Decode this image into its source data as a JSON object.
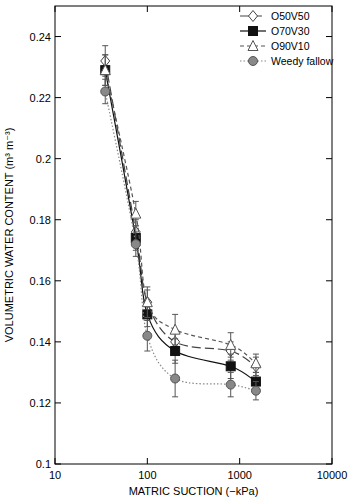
{
  "chart_data": {
    "type": "line",
    "xlabel": "MATRIC SUCTION (−kPa)",
    "ylabel": "VOLUMETRIC WATER CONTENT (m³ m⁻³)",
    "log": "x",
    "legend": "upper right",
    "x": [
      35,
      75,
      100,
      200,
      800,
      1500
    ],
    "xlim": [
      10,
      10000
    ],
    "xticks": [
      10,
      100,
      1000,
      10000
    ],
    "ylim": [
      0.1,
      0.25
    ],
    "yticks": [
      0.1,
      0.12,
      0.14,
      0.16,
      0.18,
      0.2,
      0.22,
      0.24
    ],
    "series": [
      {
        "name": "O50V50",
        "color": "#444444",
        "marker": "diamond",
        "line_style": "longdash",
        "values": [
          0.232,
          0.176,
          0.153,
          0.14,
          0.137,
          0.132
        ],
        "errors": [
          0.005,
          0.004,
          0.004,
          0.004,
          0.003,
          0.003
        ]
      },
      {
        "name": "O70V30",
        "color": "#111111",
        "marker": "square",
        "line_style": "solid",
        "values": [
          0.229,
          0.174,
          0.149,
          0.137,
          0.132,
          0.127
        ],
        "errors": [
          0.005,
          0.004,
          0.004,
          0.004,
          0.004,
          0.003
        ]
      },
      {
        "name": "O90V10",
        "color": "#555555",
        "marker": "triangle",
        "line_style": "dashed",
        "values": [
          0.229,
          0.182,
          0.153,
          0.144,
          0.139,
          0.133
        ],
        "errors": [
          0.005,
          0.004,
          0.005,
          0.005,
          0.004,
          0.003
        ]
      },
      {
        "name": "Weedy fallow",
        "color": "#888888",
        "marker": "circle",
        "line_style": "dotted",
        "values": [
          0.222,
          0.172,
          0.142,
          0.128,
          0.126,
          0.124
        ],
        "errors": [
          0.004,
          0.004,
          0.005,
          0.006,
          0.004,
          0.003
        ]
      }
    ]
  }
}
